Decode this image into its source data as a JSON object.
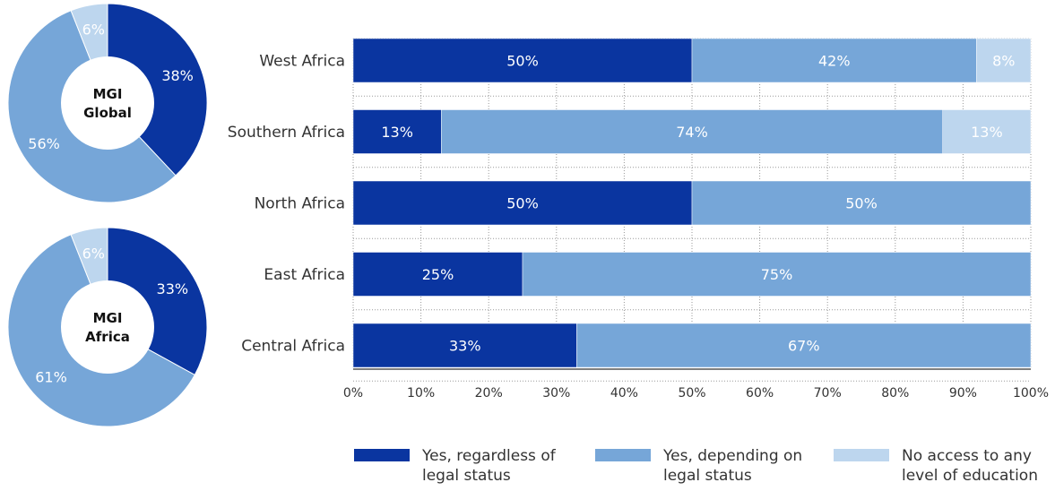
{
  "colors": {
    "yes_regardless": "#0a35a0",
    "yes_depending": "#76a6d8",
    "no_access": "#bdd6ee",
    "grid": "#9a9a9a",
    "text": "#333333"
  },
  "chart_data": [
    {
      "type": "pie",
      "center_label": "MGI Global",
      "slices": [
        {
          "key": "yes_regardless",
          "value": 38,
          "label": "38%"
        },
        {
          "key": "yes_depending",
          "value": 56,
          "label": "56%"
        },
        {
          "key": "no_access",
          "value": 6,
          "label": "6%"
        }
      ]
    },
    {
      "type": "pie",
      "center_label": "MGI Africa",
      "slices": [
        {
          "key": "yes_regardless",
          "value": 33,
          "label": "33%"
        },
        {
          "key": "yes_depending",
          "value": 61,
          "label": "61%"
        },
        {
          "key": "no_access",
          "value": 6,
          "label": "6%"
        }
      ]
    },
    {
      "type": "bar",
      "orientation": "horizontal",
      "stacked": true,
      "categories": [
        "West Africa",
        "Southern Africa",
        "North Africa",
        "East Africa",
        "Central Africa"
      ],
      "series": [
        {
          "key": "yes_regardless",
          "name": "Yes, regardless of legal status",
          "values": [
            50,
            13,
            50,
            25,
            33
          ]
        },
        {
          "key": "yes_depending",
          "name": "Yes, depending on legal status",
          "values": [
            42,
            74,
            50,
            75,
            67
          ]
        },
        {
          "key": "no_access",
          "name": "No access to any level of education",
          "values": [
            8,
            13,
            0,
            0,
            0
          ]
        }
      ],
      "xlim": [
        0,
        100
      ],
      "xticks": [
        "0%",
        "10%",
        "20%",
        "30%",
        "40%",
        "50%",
        "60%",
        "70%",
        "80%",
        "90%",
        "100%"
      ],
      "grid": true,
      "legend_position": "bottom"
    }
  ],
  "legend": [
    {
      "key": "yes_regardless",
      "label": "Yes, regardless of legal status"
    },
    {
      "key": "yes_depending",
      "label": "Yes, depending on legal status"
    },
    {
      "key": "no_access",
      "label": "No access to any level of education"
    }
  ]
}
